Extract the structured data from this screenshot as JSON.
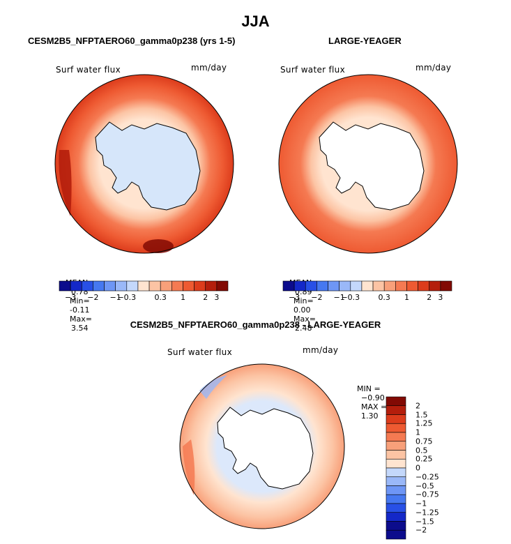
{
  "chart_data": [
    {
      "type": "heatmap",
      "season": "JJA",
      "panel_title": "CESM2B5_NFPTAERO60_gamma0p238 (yrs 1-5)",
      "variable": "Surf water flux",
      "units": "mm/day",
      "projection": "south-polar stereographic",
      "stats": {
        "mean_label": "MEAN=",
        "mean": "0.78",
        "min_label": "Min=",
        "min": "-0.11",
        "max_label": "Max=",
        "max": "3.54"
      },
      "colorbar_ticks": [
        "−3",
        "−2",
        "−1",
        "−0.3",
        "0.3",
        "1",
        "2",
        "3"
      ]
    },
    {
      "type": "heatmap",
      "season": "JJA",
      "panel_title": "LARGE-YEAGER",
      "variable": "Surf water flux",
      "units": "mm/day",
      "projection": "south-polar stereographic",
      "stats": {
        "mean_label": "MEAN=",
        "mean": "0.89",
        "min_label": "Min=",
        "min": "0.00",
        "max_label": "Max=",
        "max": "2.48"
      },
      "colorbar_ticks": [
        "−3",
        "−2",
        "−1",
        "−0.3",
        "0.3",
        "1",
        "2",
        "3"
      ]
    },
    {
      "type": "heatmap",
      "season": "JJA",
      "panel_title": "CESM2B5_NFPTAERO60_gamma0p238 - LARGE-YEAGER",
      "variable": "Surf water flux",
      "units": "mm/day",
      "projection": "south-polar stereographic",
      "stats": {
        "min_label": "MIN =",
        "min": "−0.90",
        "max_label": "MAX =",
        "max": "1.30"
      },
      "colorbar_ticks": [
        "2",
        "1.5",
        "1.25",
        "1",
        "0.75",
        "0.5",
        "0.25",
        "0",
        "−0.25",
        "−0.5",
        "−0.75",
        "−1",
        "−1.25",
        "−1.5",
        "−2"
      ]
    }
  ],
  "header": {
    "title": "JJA"
  },
  "colors": {
    "abs_scale": [
      "#0c0c8c",
      "#1428c8",
      "#2850e6",
      "#4678f0",
      "#6e96f5",
      "#9ab8f8",
      "#c4d8fb",
      "#ffe4d0",
      "#fcc4a4",
      "#f8a07a",
      "#f57a52",
      "#ee5a32",
      "#dc3c1c",
      "#b41e0c",
      "#820a04"
    ],
    "diff_scale": [
      "#820a04",
      "#b41e0c",
      "#dc3c1c",
      "#ee5a32",
      "#f57a52",
      "#f8a07a",
      "#fcc4a4",
      "#ffe4d0",
      "#c4d8fb",
      "#9ab8f8",
      "#6e96f5",
      "#4678f0",
      "#2850e6",
      "#1428c8",
      "#0c0c8c"
    ],
    "land_model": "#d6e6fa",
    "land_obs": "#ffffff"
  }
}
